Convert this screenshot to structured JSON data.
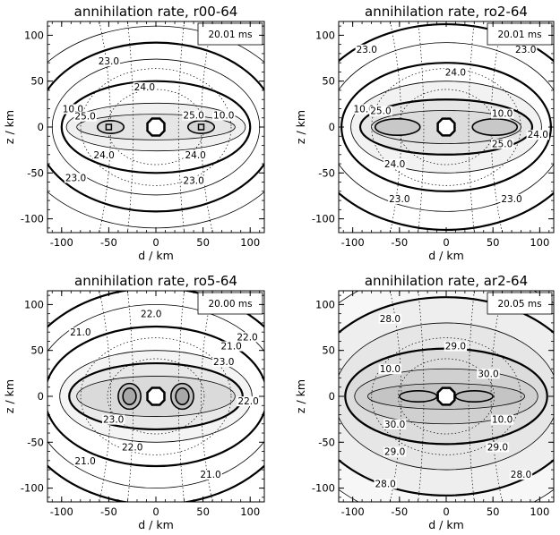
{
  "chart_data": [
    {
      "type": "contour",
      "title": "annihilation rate, r00-64",
      "time_label": "20.01 ms",
      "xlabel": "d / km",
      "ylabel": "z / km",
      "xlim": [
        -115,
        115
      ],
      "ylim": [
        -115,
        115
      ],
      "xticks": [
        -100,
        -50,
        0,
        50,
        100
      ],
      "yticks": [
        -100,
        -50,
        0,
        50,
        100
      ],
      "contour_labels": [
        {
          "text": "23.0",
          "d": -50,
          "z": 72
        },
        {
          "text": "24.0",
          "d": -12,
          "z": 44
        },
        {
          "text": "10.0",
          "d": -88,
          "z": 20
        },
        {
          "text": "25.0",
          "d": -75,
          "z": 12
        },
        {
          "text": "25.0",
          "d": 40,
          "z": 13
        },
        {
          "text": "10.0",
          "d": 72,
          "z": 13
        },
        {
          "text": "24.0",
          "d": -55,
          "z": -30
        },
        {
          "text": "24.0",
          "d": 42,
          "z": -30
        },
        {
          "text": "23.0",
          "d": -85,
          "z": -55
        },
        {
          "text": "23.0",
          "d": 40,
          "z": -58
        }
      ]
    },
    {
      "type": "contour",
      "title": "annihilation rate, ro2-64",
      "time_label": "20.01 ms",
      "xlabel": "d / km",
      "ylabel": "z / km",
      "xlim": [
        -115,
        115
      ],
      "ylim": [
        -115,
        115
      ],
      "xticks": [
        -100,
        -50,
        0,
        50,
        100
      ],
      "yticks": [
        -100,
        -50,
        0,
        50,
        100
      ],
      "contour_labels": [
        {
          "text": "23.0",
          "d": -85,
          "z": 85
        },
        {
          "text": "24.0",
          "d": 10,
          "z": 60
        },
        {
          "text": "23.0",
          "d": 85,
          "z": 85
        },
        {
          "text": "10.0",
          "d": -88,
          "z": 20
        },
        {
          "text": "25.0",
          "d": -70,
          "z": 18
        },
        {
          "text": "10.0",
          "d": 60,
          "z": 15
        },
        {
          "text": "25.0",
          "d": 60,
          "z": -18
        },
        {
          "text": "24.0",
          "d": 98,
          "z": -8
        },
        {
          "text": "24.0",
          "d": -55,
          "z": -40
        },
        {
          "text": "23.0",
          "d": -50,
          "z": -78
        },
        {
          "text": "23.0",
          "d": 70,
          "z": -78
        }
      ]
    },
    {
      "type": "contour",
      "title": "annihilation rate, ro5-64",
      "time_label": "20.00 ms",
      "xlabel": "d / km",
      "ylabel": "z / km",
      "xlim": [
        -115,
        115
      ],
      "ylim": [
        -115,
        115
      ],
      "xticks": [
        -100,
        -50,
        0,
        50,
        100
      ],
      "yticks": [
        -100,
        -50,
        0,
        50,
        100
      ],
      "contour_labels": [
        {
          "text": "21.0",
          "d": -80,
          "z": 70
        },
        {
          "text": "22.0",
          "d": -5,
          "z": 90
        },
        {
          "text": "21.0",
          "d": 80,
          "z": 55
        },
        {
          "text": "23.0",
          "d": 72,
          "z": 38
        },
        {
          "text": "22.0",
          "d": 97,
          "z": 65
        },
        {
          "text": "23.0",
          "d": -45,
          "z": -25
        },
        {
          "text": "22.0",
          "d": -25,
          "z": -55
        },
        {
          "text": "21.0",
          "d": -75,
          "z": -70
        },
        {
          "text": "21.0",
          "d": 58,
          "z": -85
        },
        {
          "text": "22.0",
          "d": 98,
          "z": -5
        }
      ]
    },
    {
      "type": "contour",
      "title": "annihilation rate, ar2-64",
      "time_label": "20.05 ms",
      "xlabel": "d / km",
      "ylabel": "z / km",
      "xlim": [
        -115,
        115
      ],
      "ylim": [
        -115,
        115
      ],
      "xticks": [
        -100,
        -50,
        0,
        50,
        100
      ],
      "yticks": [
        -100,
        -50,
        0,
        50,
        100
      ],
      "contour_labels": [
        {
          "text": "28.0",
          "d": -60,
          "z": 85
        },
        {
          "text": "29.0",
          "d": 10,
          "z": 55
        },
        {
          "text": "10.0",
          "d": -60,
          "z": 30
        },
        {
          "text": "30.0",
          "d": 45,
          "z": 25
        },
        {
          "text": "30.0",
          "d": -55,
          "z": -30
        },
        {
          "text": "10.0",
          "d": 60,
          "z": -25
        },
        {
          "text": "29.0",
          "d": -55,
          "z": -60
        },
        {
          "text": "29.0",
          "d": 55,
          "z": -55
        },
        {
          "text": "28.0",
          "d": -65,
          "z": -95
        },
        {
          "text": "28.0",
          "d": 80,
          "z": -85
        }
      ]
    }
  ]
}
